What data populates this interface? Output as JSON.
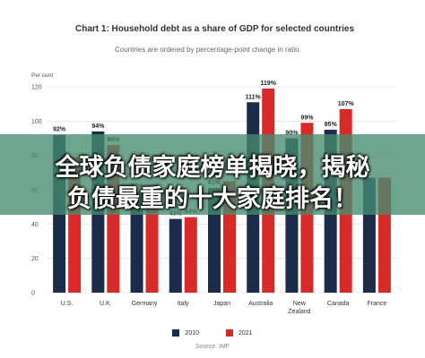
{
  "chart_data": {
    "type": "bar",
    "title": "Chart 1: Household debt as a share of GDP for selected countries",
    "subtitle": "Countries are ordered by percentage-point change in ratio.",
    "ylabel": "Per cent",
    "ylim": [
      0,
      120
    ],
    "yticks": [
      0,
      20,
      40,
      60,
      80,
      100,
      120
    ],
    "categories": [
      "U.S.",
      "U.K.",
      "Germany",
      "Italy",
      "Japan",
      "Australia",
      "New Zealand",
      "Canada",
      "France"
    ],
    "series": [
      {
        "name": "2010",
        "color": "#1a2c4a",
        "values": [
          92,
          94,
          59,
          43,
          61,
          111,
          90,
          95,
          67
        ],
        "labels": [
          "92%",
          "94%",
          "59%",
          "43%",
          "61%",
          "111%",
          "90%",
          "95%",
          ""
        ]
      },
      {
        "name": "2021",
        "color": "#d92a2a",
        "values": [
          79,
          86,
          56,
          44,
          65,
          119,
          99,
          107,
          67
        ],
        "labels": [
          "",
          "86%",
          "",
          "44%",
          "",
          "119%",
          "99%",
          "107%",
          ""
        ]
      }
    ],
    "grid": true,
    "legend_position": "bottom",
    "source": "Source: IMF"
  },
  "banner": {
    "line1": "全球负债家庭榜单揭晓，揭秘",
    "line2": "负债最重的十大家庭排名！"
  }
}
